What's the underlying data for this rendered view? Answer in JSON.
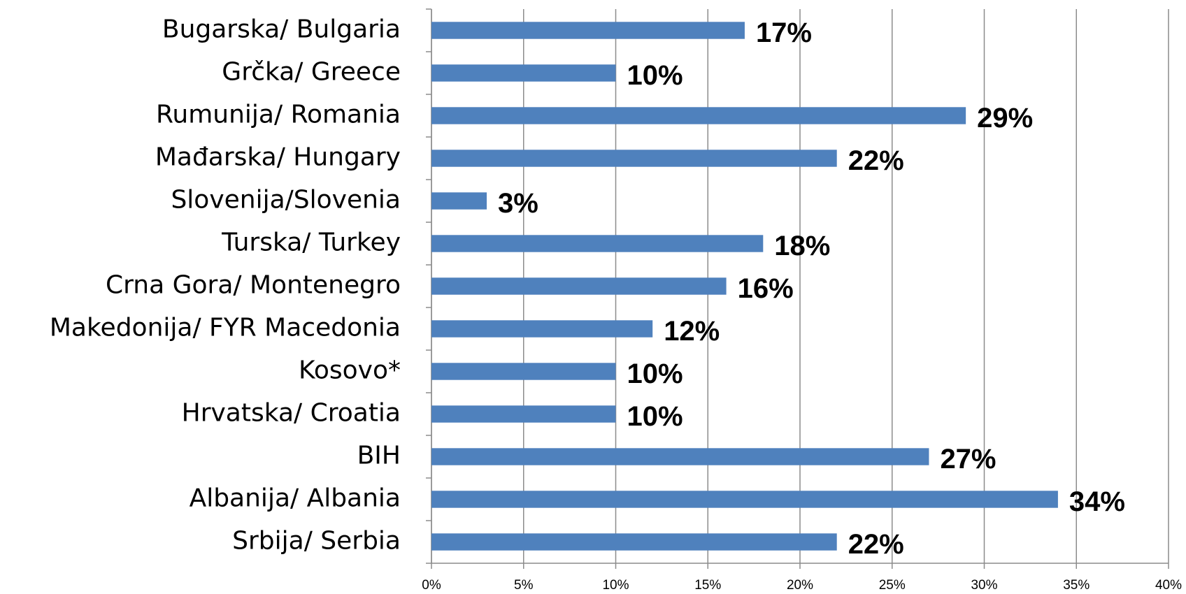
{
  "chart_data": {
    "type": "bar",
    "orientation": "horizontal",
    "categories": [
      "Bugarska/ Bulgaria",
      "Grčka/ Greece",
      "Rumunija/ Romania",
      "Mađarska/ Hungary",
      "Slovenija/Slovenia",
      "Turska/ Turkey",
      "Crna Gora/ Montenegro",
      "Makedonija/ FYR Macedonia",
      "Kosovo*",
      "Hrvatska/ Croatia",
      "BIH",
      "Albanija/ Albania",
      "Srbija/ Serbia"
    ],
    "values": [
      17,
      10,
      29,
      22,
      3,
      18,
      16,
      12,
      10,
      10,
      27,
      34,
      22
    ],
    "value_labels": [
      "17%",
      "10%",
      "29%",
      "22%",
      "3%",
      "18%",
      "16%",
      "12%",
      "10%",
      "10%",
      "27%",
      "34%",
      "22%"
    ],
    "color": "#4f81bd",
    "xlim": [
      0,
      40
    ],
    "xticks": [
      {
        "value": 0,
        "label": "0%"
      },
      {
        "value": 5,
        "label": "5%"
      },
      {
        "value": 10,
        "label": "10%"
      },
      {
        "value": 15,
        "label": "15%"
      },
      {
        "value": 20,
        "label": "20%"
      },
      {
        "value": 25,
        "label": "25%"
      },
      {
        "value": 30,
        "label": "30%"
      },
      {
        "value": 35,
        "label": "35%"
      },
      {
        "value": 40,
        "label": "40%"
      }
    ],
    "grid": true
  }
}
